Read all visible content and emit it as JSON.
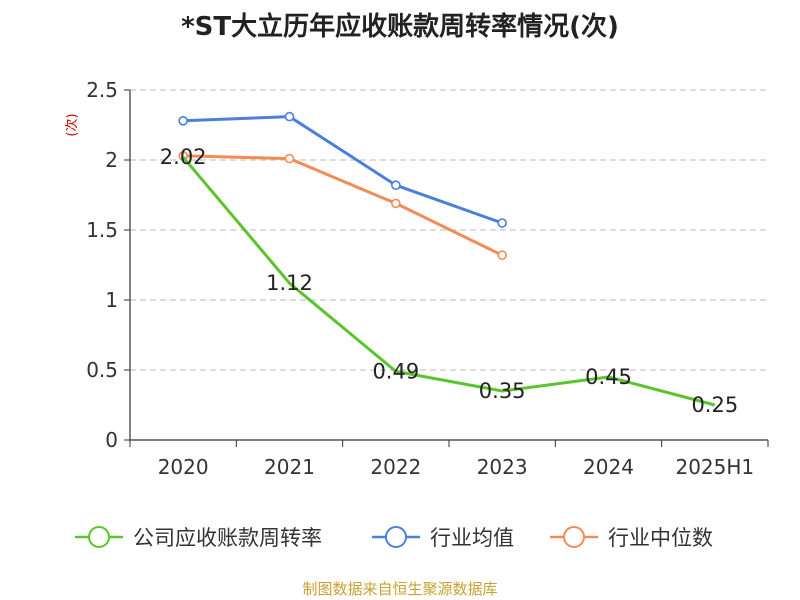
{
  "title": "*ST大立历年应收账款周转率情况(次)",
  "footer": "制图数据来自恒生聚源数据库",
  "chart_data": {
    "type": "line",
    "title": "*ST大立历年应收账款周转率情况(次)",
    "ylabel": "(次)",
    "ylim": [
      0,
      2.5
    ],
    "yticks": [
      "0",
      "0.5",
      "1",
      "1.5",
      "2",
      "2.5"
    ],
    "grid": true,
    "legend_position": "bottom",
    "categories": [
      "2020",
      "2021",
      "2022",
      "2023",
      "2024",
      "2025H1"
    ],
    "series": [
      {
        "name": "公司应收账款周转率",
        "color": "#5bc42b",
        "values": [
          2.02,
          1.12,
          0.49,
          0.35,
          0.45,
          0.25
        ],
        "labels": [
          "2.02",
          "1.12",
          "0.49",
          "0.35",
          "0.45",
          "0.25"
        ]
      },
      {
        "name": "行业均值",
        "color": "#4a7fdc",
        "values": [
          2.28,
          2.31,
          1.82,
          1.55,
          null,
          null
        ]
      },
      {
        "name": "行业中位数",
        "color": "#f28c55",
        "values": [
          2.03,
          2.01,
          1.69,
          1.32,
          null,
          null
        ]
      }
    ]
  }
}
